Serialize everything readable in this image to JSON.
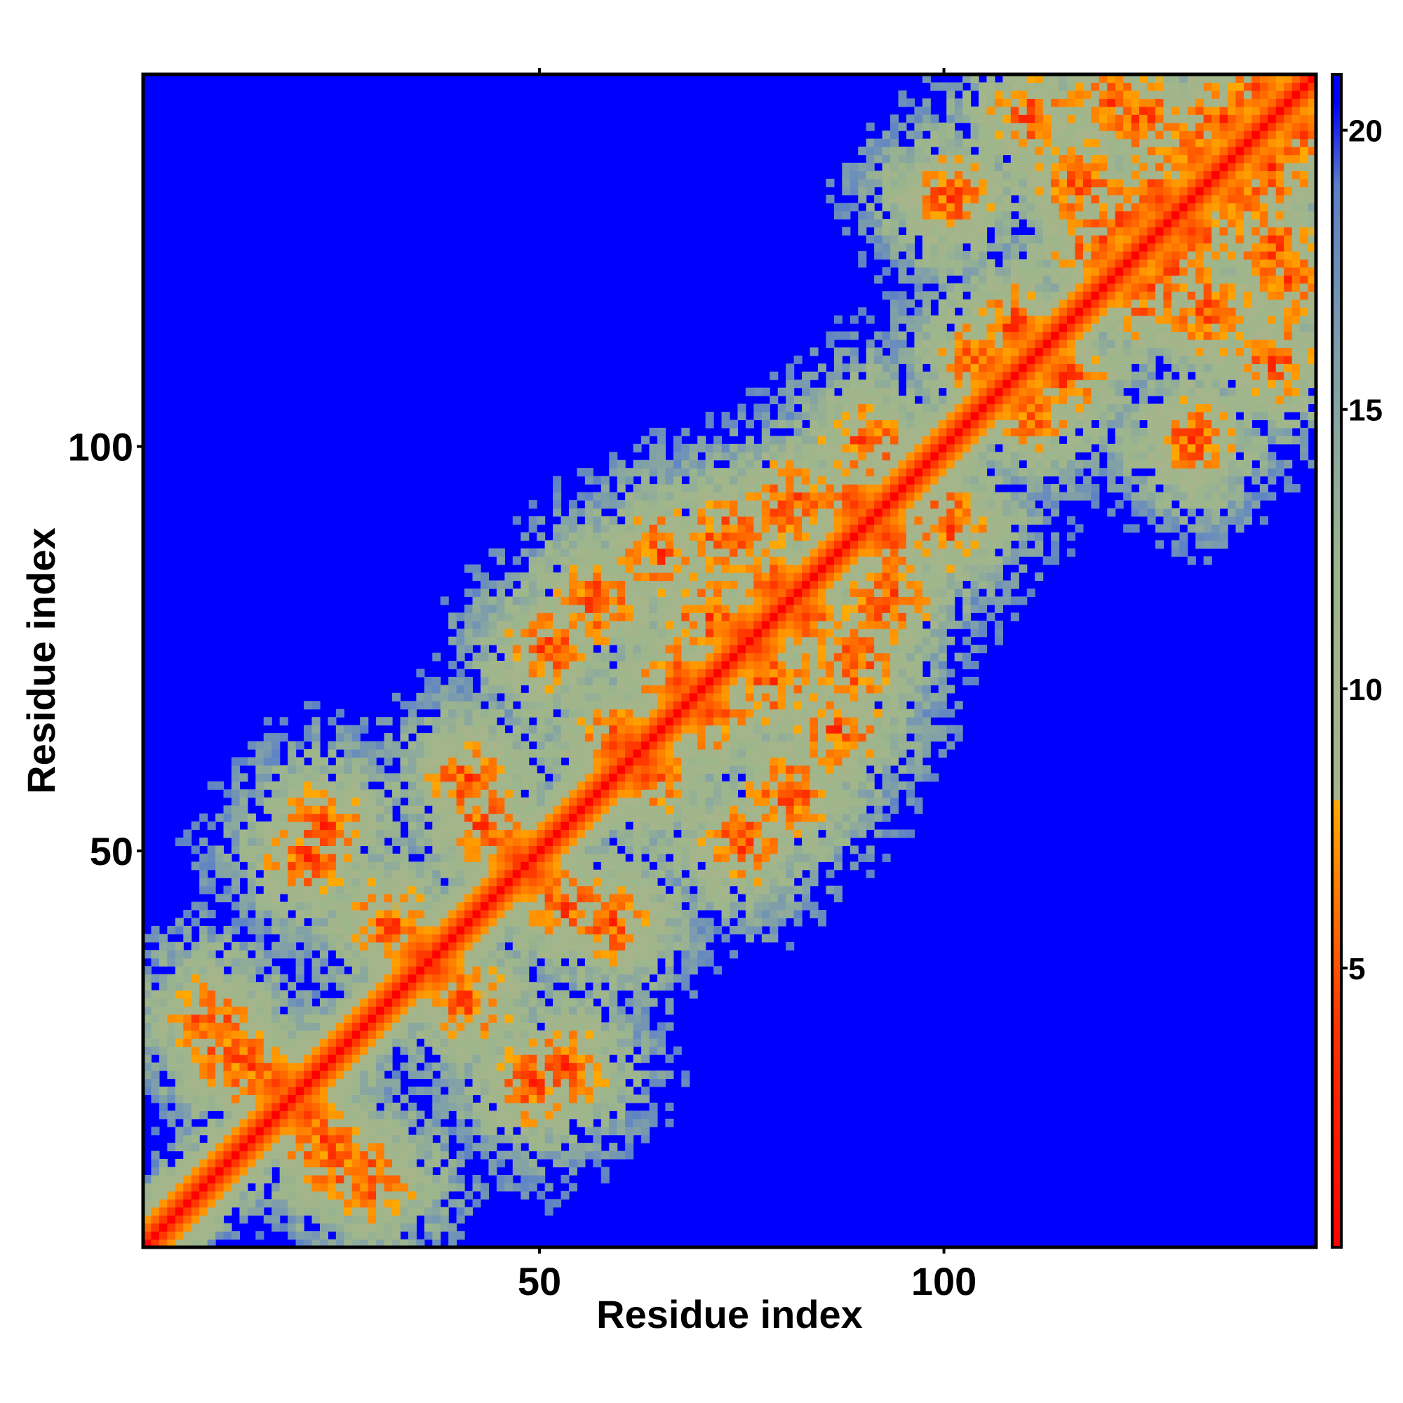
{
  "chart_data": {
    "type": "heatmap",
    "title": "",
    "xlabel": "Residue index",
    "ylabel": "Residue index",
    "xlim": [
      1,
      146
    ],
    "ylim": [
      1,
      146
    ],
    "x_ticks": [
      50,
      100
    ],
    "y_ticks": [
      50,
      100
    ],
    "colorbar": {
      "ticks": [
        5,
        10,
        15,
        20
      ],
      "range": [
        0,
        21
      ],
      "stops": [
        {
          "value": 0,
          "color": "#ff0000"
        },
        {
          "value": 4,
          "color": "#ff3300"
        },
        {
          "value": 6,
          "color": "#ff7000"
        },
        {
          "value": 8,
          "color": "#ffaa00"
        },
        {
          "value": 8.01,
          "color": "#a8b48a"
        },
        {
          "value": 12,
          "color": "#9db68c"
        },
        {
          "value": 16,
          "color": "#7e9eab"
        },
        {
          "value": 19,
          "color": "#5a80c8"
        },
        {
          "value": 20.5,
          "color": "#0000ff"
        },
        {
          "value": 21,
          "color": "#0000ff"
        }
      ]
    },
    "background_color": "#0000ff",
    "cutoff_value": 21,
    "n_residues": 146,
    "contact_centers": [
      [
        12,
        22
      ],
      [
        16,
        20
      ],
      [
        8,
        28
      ],
      [
        10,
        24
      ],
      [
        30,
        40
      ],
      [
        34,
        36
      ],
      [
        36,
        34
      ],
      [
        42,
        52
      ],
      [
        46,
        48
      ],
      [
        48,
        46
      ],
      [
        40,
        58
      ],
      [
        58,
        62
      ],
      [
        62,
        60
      ],
      [
        66,
        70
      ],
      [
        70,
        78
      ],
      [
        74,
        76
      ],
      [
        78,
        82
      ],
      [
        72,
        88
      ],
      [
        80,
        92
      ],
      [
        88,
        92
      ],
      [
        92,
        88
      ],
      [
        90,
        100
      ],
      [
        104,
        110
      ],
      [
        108,
        114
      ],
      [
        118,
        124
      ],
      [
        122,
        128
      ],
      [
        126,
        130
      ],
      [
        130,
        136
      ],
      [
        134,
        140
      ],
      [
        138,
        144
      ],
      [
        124,
        140
      ],
      [
        116,
        132
      ],
      [
        110,
        140
      ],
      [
        20,
        48
      ],
      [
        22,
        52
      ],
      [
        50,
        74
      ],
      [
        56,
        80
      ],
      [
        64,
        86
      ],
      [
        100,
        130
      ],
      [
        120,
        142
      ]
    ],
    "diagonal_band_width": 5.5
  }
}
